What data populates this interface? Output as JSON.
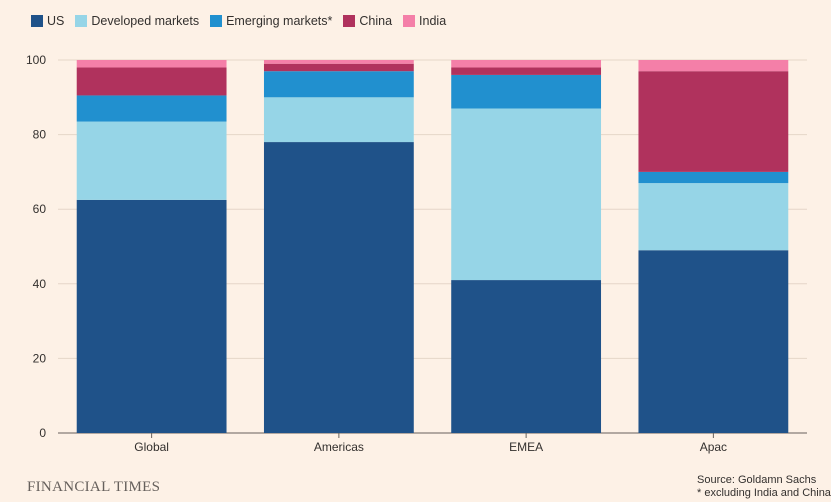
{
  "chart_data": {
    "type": "bar",
    "stacked": true,
    "categories": [
      "Global",
      "Americas",
      "EMEA",
      "Apac"
    ],
    "series": [
      {
        "name": "US",
        "color": "#1f5289",
        "values": [
          62.5,
          78,
          41,
          49
        ]
      },
      {
        "name": "Developed markets",
        "color": "#96d5e7",
        "values": [
          21,
          12,
          46,
          18
        ]
      },
      {
        "name": "Emerging markets*",
        "color": "#2190cf",
        "values": [
          7,
          7,
          9,
          3
        ]
      },
      {
        "name": "China",
        "color": "#b0325d",
        "values": [
          7.5,
          2,
          2,
          27
        ]
      },
      {
        "name": "India",
        "color": "#f47fa8",
        "values": [
          2,
          1,
          2,
          3
        ]
      }
    ],
    "ylim": [
      0,
      100
    ],
    "yticks": [
      0,
      20,
      40,
      60,
      80,
      100
    ],
    "legend_position": "top-left"
  },
  "footer": {
    "brand": "FINANCIAL TIMES",
    "source": "Source: Goldamn Sachs",
    "note": "* excluding India and China"
  }
}
